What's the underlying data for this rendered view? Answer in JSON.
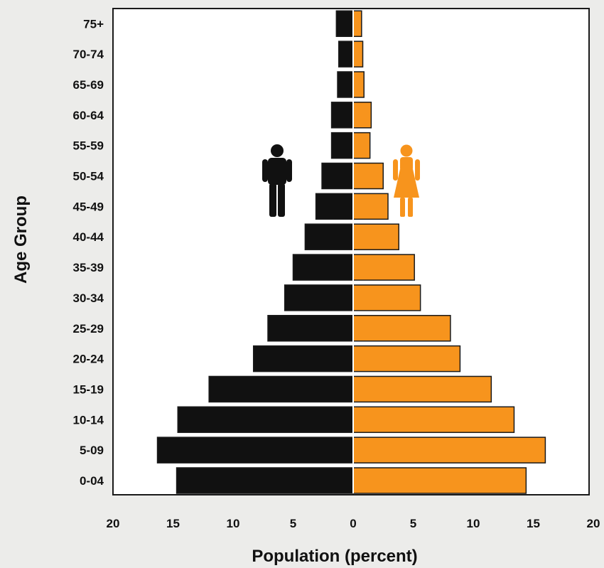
{
  "chart_data": {
    "type": "bar",
    "orientation": "horizontal",
    "layout": "population-pyramid",
    "categories": [
      "0-04",
      "5-09",
      "10-14",
      "15-19",
      "20-24",
      "25-29",
      "30-34",
      "35-39",
      "40-44",
      "45-49",
      "50-54",
      "55-59",
      "60-64",
      "65-69",
      "70-74",
      "75+"
    ],
    "series": [
      {
        "side": "left",
        "color": "#111111",
        "icon": "male-figure-icon",
        "values": [
          14.7,
          16.3,
          14.6,
          12.0,
          8.3,
          7.1,
          5.7,
          5.0,
          4.0,
          3.1,
          2.6,
          1.8,
          1.8,
          1.3,
          1.2,
          1.4
        ]
      },
      {
        "side": "right",
        "color": "#f7941d",
        "icon": "female-figure-icon",
        "values": [
          14.4,
          16.0,
          13.4,
          11.5,
          8.9,
          8.1,
          5.6,
          5.1,
          3.8,
          2.9,
          2.5,
          1.4,
          1.5,
          0.9,
          0.8,
          0.7
        ]
      }
    ],
    "xlabel": "Population (percent)",
    "ylabel": "Age Group",
    "xlim": [
      -20,
      20
    ],
    "xticks": [
      -20,
      -15,
      -10,
      -5,
      0,
      5,
      10,
      15,
      20
    ],
    "xtick_labels": [
      "20",
      "15",
      "10",
      "5",
      "0",
      "5",
      "10",
      "15",
      "20"
    ],
    "grid": false,
    "legend": "icons"
  }
}
